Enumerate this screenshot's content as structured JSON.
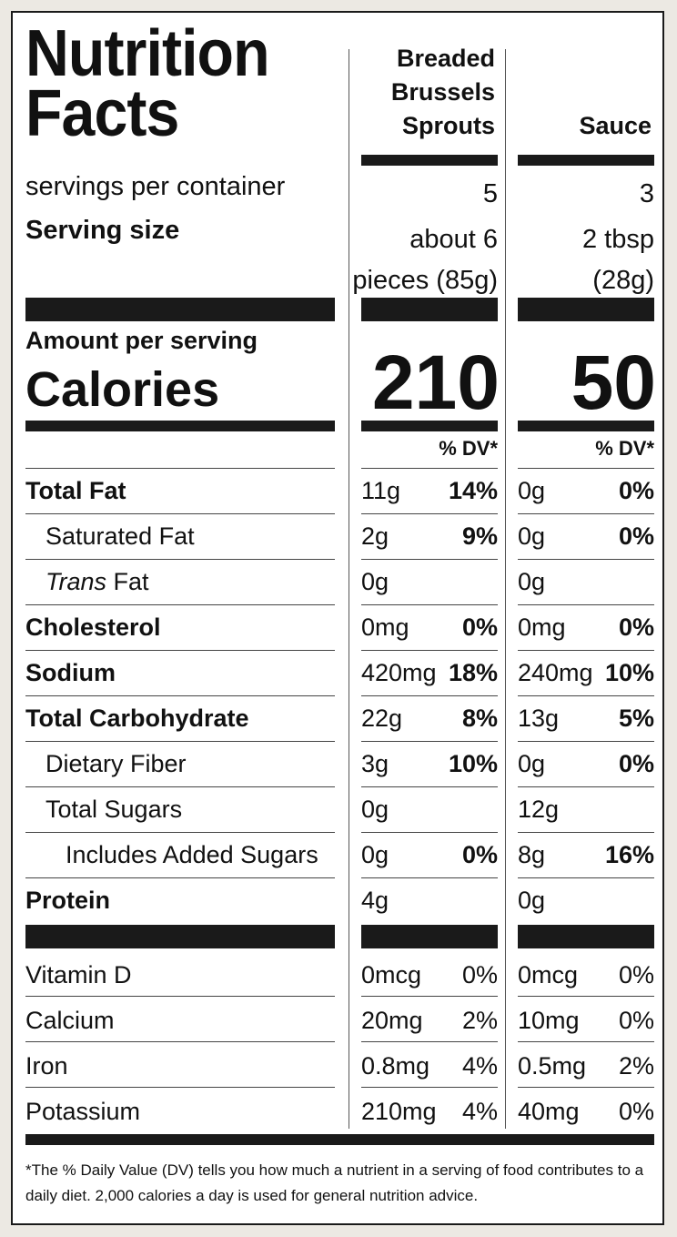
{
  "title": "Nutrition Facts",
  "columns": [
    {
      "name": "Breaded Brussels Sprouts",
      "servings": "5",
      "serving_size": "about 6 pieces (85g)",
      "calories": "210",
      "dv_header": "% DV*"
    },
    {
      "name": "Sauce",
      "servings": "3",
      "serving_size": "2 tbsp (28g)",
      "calories": "50",
      "dv_header": "% DV*"
    }
  ],
  "labels": {
    "servings_per_container": "servings per container",
    "serving_size": "Serving size",
    "amount_per_serving": "Amount per serving",
    "calories": "Calories"
  },
  "nutrients": [
    {
      "name": "Total Fat",
      "bold": true,
      "indent": 0,
      "c1": {
        "amount": "11g",
        "dv": "14%"
      },
      "c2": {
        "amount": "0g",
        "dv": "0%"
      }
    },
    {
      "name": "Saturated Fat",
      "bold": false,
      "indent": 1,
      "c1": {
        "amount": "2g",
        "dv": "9%"
      },
      "c2": {
        "amount": "0g",
        "dv": "0%"
      }
    },
    {
      "name": "Trans Fat",
      "italic_prefix": "Trans",
      "suffix": " Fat",
      "bold": false,
      "indent": 1,
      "c1": {
        "amount": "0g",
        "dv": ""
      },
      "c2": {
        "amount": "0g",
        "dv": ""
      }
    },
    {
      "name": "Cholesterol",
      "bold": true,
      "indent": 0,
      "c1": {
        "amount": "0mg",
        "dv": "0%"
      },
      "c2": {
        "amount": "0mg",
        "dv": "0%"
      }
    },
    {
      "name": "Sodium",
      "bold": true,
      "indent": 0,
      "c1": {
        "amount": "420mg",
        "dv": "18%"
      },
      "c2": {
        "amount": "240mg",
        "dv": "10%"
      }
    },
    {
      "name": "Total Carbohydrate",
      "bold": true,
      "indent": 0,
      "c1": {
        "amount": "22g",
        "dv": "8%"
      },
      "c2": {
        "amount": "13g",
        "dv": "5%"
      }
    },
    {
      "name": "Dietary Fiber",
      "bold": false,
      "indent": 1,
      "c1": {
        "amount": "3g",
        "dv": "10%"
      },
      "c2": {
        "amount": "0g",
        "dv": "0%"
      }
    },
    {
      "name": "Total Sugars",
      "bold": false,
      "indent": 1,
      "c1": {
        "amount": "0g",
        "dv": ""
      },
      "c2": {
        "amount": "12g",
        "dv": ""
      }
    },
    {
      "name": "Includes Added Sugars",
      "bold": false,
      "indent": 2,
      "c1": {
        "amount": "0g",
        "dv": "0%"
      },
      "c2": {
        "amount": "8g",
        "dv": "16%"
      }
    },
    {
      "name": "Protein",
      "bold": true,
      "indent": 0,
      "c1": {
        "amount": "4g",
        "dv": ""
      },
      "c2": {
        "amount": "0g",
        "dv": ""
      }
    }
  ],
  "vitamins": [
    {
      "name": "Vitamin D",
      "c1": {
        "amount": "0mcg",
        "dv": "0%"
      },
      "c2": {
        "amount": "0mcg",
        "dv": "0%"
      }
    },
    {
      "name": "Calcium",
      "c1": {
        "amount": "20mg",
        "dv": "2%"
      },
      "c2": {
        "amount": "10mg",
        "dv": "0%"
      }
    },
    {
      "name": "Iron",
      "c1": {
        "amount": "0.8mg",
        "dv": "4%"
      },
      "c2": {
        "amount": "0.5mg",
        "dv": "2%"
      }
    },
    {
      "name": "Potassium",
      "c1": {
        "amount": "210mg",
        "dv": "4%"
      },
      "c2": {
        "amount": "40mg",
        "dv": "0%"
      }
    }
  ],
  "footnote": "*The % Daily Value (DV) tells you how much a nutrient in a serving of food contributes to a daily diet. 2,000 calories a day is used for general nutrition advice."
}
